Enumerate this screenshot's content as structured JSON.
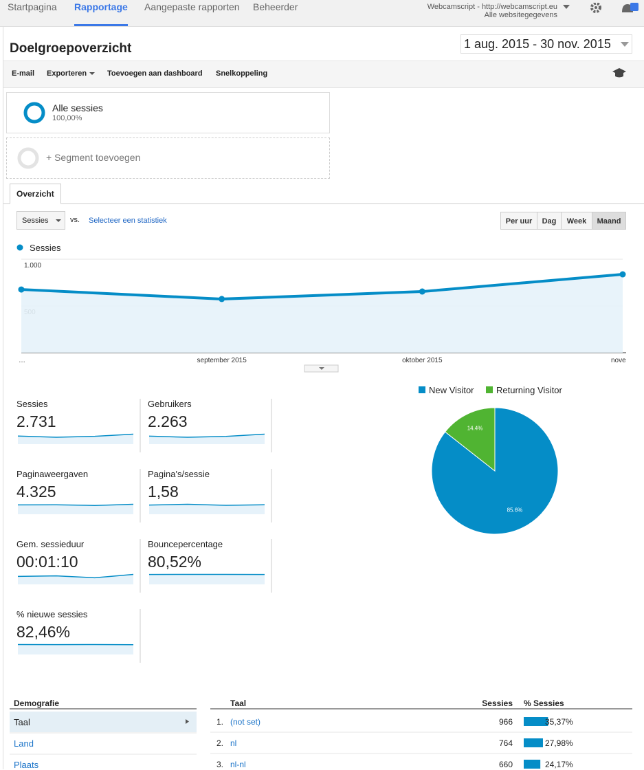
{
  "nav": {
    "tabs": [
      "Startpagina",
      "Rapportage",
      "Aangepaste rapporten",
      "Beheerder"
    ],
    "account": "Webcamscript - http://webcamscript.eu",
    "view": "Alle websitegegevens"
  },
  "header": {
    "title": "Doelgroepoverzicht",
    "date_range": "1 aug. 2015 - 30 nov. 2015"
  },
  "toolbar": [
    "E-mail",
    "Exporteren",
    "Toevoegen aan dashboard",
    "Snelkoppeling"
  ],
  "segments": {
    "active": {
      "name": "Alle sessies",
      "share": "100,00%"
    },
    "add": "+ Segment toevoegen"
  },
  "tab": "Overzicht",
  "controls": {
    "metric": "Sessies",
    "vs": "vs.",
    "select": "Selecteer een statistiek",
    "granularity": [
      "Per uur",
      "Dag",
      "Week",
      "Maand"
    ]
  },
  "chart_data": [
    {
      "type": "line",
      "categories": [
        "…",
        "september 2015",
        "oktober 2015",
        "nove"
      ],
      "series": [
        {
          "name": "Sessies",
          "color": "#058dc7",
          "values": [
            676,
            574,
            654,
            838
          ]
        }
      ],
      "ylim": [
        0,
        1000
      ],
      "yticks": [
        {
          "value": 1000,
          "label": "1.000"
        },
        500
      ],
      "grid": true
    },
    {
      "type": "pie",
      "categories": [
        "New Visitor",
        "Returning Visitor"
      ],
      "values": [
        85.6,
        14.4
      ],
      "value_labels": [
        "85.6%",
        "14.4%"
      ],
      "colors": [
        "#058dc7",
        "#50b432"
      ],
      "legend": "top"
    }
  ],
  "metrics": [
    {
      "name": "Sessies",
      "value": "2.731",
      "spark": [
        676,
        574,
        654,
        838
      ]
    },
    {
      "name": "Gebruikers",
      "value": "2.263",
      "spark": [
        560,
        480,
        540,
        700
      ]
    },
    {
      "name": "Paginaweergaven",
      "value": "4.325",
      "spark": [
        1080,
        1090,
        1010,
        1150
      ]
    },
    {
      "name": "Pagina's/sessie",
      "value": "1,58",
      "spark": [
        1.55,
        1.68,
        1.5,
        1.6
      ]
    },
    {
      "name": "Gem. sessieduur",
      "value": "00:01:10",
      "spark": [
        70,
        75,
        58,
        88
      ]
    },
    {
      "name": "Bouncepercentage",
      "value": "80,52%",
      "spark": [
        80,
        81,
        81,
        80
      ]
    },
    {
      "name": "% nieuwe sessies",
      "value": "82,46%",
      "spark": [
        83,
        82,
        83,
        81
      ]
    }
  ],
  "table": {
    "menu_title": "Demografie",
    "menu": [
      "Taal",
      "Land",
      "Plaats"
    ],
    "columns": [
      "Taal",
      "Sessies",
      "% Sessies"
    ],
    "rows": [
      {
        "rank": "1.",
        "label": "(not set)",
        "sessions": 966,
        "share": {
          "value": 35.37,
          "label": "35,37%"
        }
      },
      {
        "rank": "2.",
        "label": "nl",
        "sessions": 764,
        "share": {
          "value": 27.98,
          "label": "27,98%"
        }
      },
      {
        "rank": "3.",
        "label": "nl-nl",
        "sessions": 660,
        "share": {
          "value": 24.17,
          "label": "24,17%"
        }
      }
    ]
  }
}
